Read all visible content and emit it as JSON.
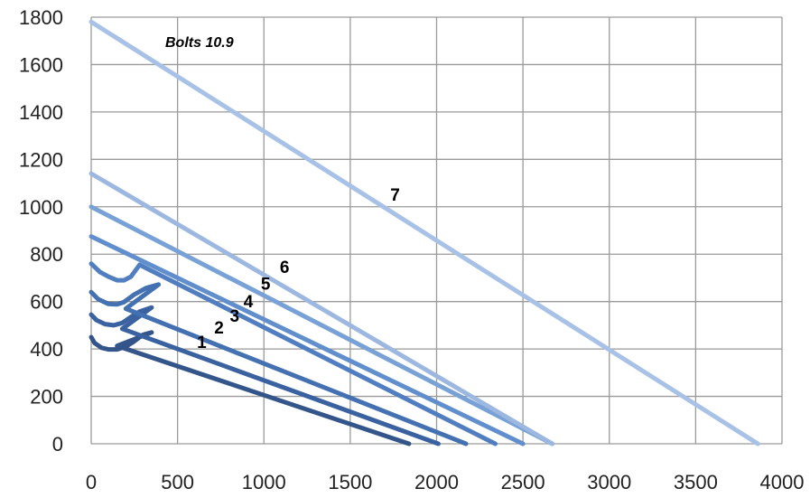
{
  "chart_data": {
    "type": "line",
    "title": "Bolts 10.9",
    "xlabel": "",
    "ylabel": "",
    "xlim": [
      0,
      4000
    ],
    "ylim": [
      0,
      1800
    ],
    "x_ticks": [
      0,
      500,
      1000,
      1500,
      2000,
      2500,
      3000,
      3500,
      4000
    ],
    "y_ticks": [
      0,
      200,
      400,
      600,
      800,
      1000,
      1200,
      1400,
      1600,
      1800
    ],
    "grid": true,
    "series": [
      {
        "name": "1",
        "color": "#34558a",
        "points": [
          [
            0,
            450
          ],
          [
            20,
            425
          ],
          [
            60,
            405
          ],
          [
            100,
            398
          ],
          [
            150,
            398
          ],
          [
            200,
            410
          ],
          [
            240,
            428
          ],
          [
            270,
            444
          ],
          [
            300,
            460
          ],
          [
            350,
            470
          ],
          [
            150,
            413
          ],
          [
            1840,
            0
          ]
        ]
      },
      {
        "name": "2",
        "color": "#3a62a0",
        "points": [
          [
            0,
            545
          ],
          [
            30,
            522
          ],
          [
            80,
            505
          ],
          [
            130,
            500
          ],
          [
            180,
            510
          ],
          [
            230,
            535
          ],
          [
            280,
            558
          ],
          [
            350,
            575
          ],
          [
            180,
            485
          ],
          [
            2010,
            0
          ]
        ]
      },
      {
        "name": "3",
        "color": "#4471b2",
        "points": [
          [
            0,
            640
          ],
          [
            40,
            610
          ],
          [
            100,
            590
          ],
          [
            150,
            588
          ],
          [
            190,
            598
          ],
          [
            250,
            630
          ],
          [
            320,
            658
          ],
          [
            390,
            672
          ],
          [
            200,
            570
          ],
          [
            2170,
            0
          ]
        ]
      },
      {
        "name": "4",
        "color": "#507ec0",
        "points": [
          [
            0,
            760
          ],
          [
            50,
            725
          ],
          [
            100,
            705
          ],
          [
            150,
            690
          ],
          [
            190,
            690
          ],
          [
            230,
            705
          ],
          [
            260,
            735
          ],
          [
            280,
            755
          ],
          [
            2340,
            0
          ]
        ]
      },
      {
        "name": "5",
        "color": "#618ecc",
        "points": [
          [
            0,
            875
          ],
          [
            2500,
            0
          ]
        ]
      },
      {
        "name": "6",
        "color": "#78a1d6",
        "points": [
          [
            0,
            1000
          ],
          [
            2670,
            0
          ]
        ]
      },
      {
        "name": "7",
        "color": "#a8c1e6",
        "points": [
          [
            0,
            1780
          ],
          [
            3860,
            0
          ]
        ]
      },
      {
        "name": "",
        "color": "#9cb8e0",
        "points": [
          [
            0,
            1140
          ],
          [
            2670,
            0
          ]
        ]
      }
    ],
    "annotations": [
      {
        "text": "1",
        "x": 640,
        "y": 405
      },
      {
        "text": "2",
        "x": 740,
        "y": 465
      },
      {
        "text": "3",
        "x": 830,
        "y": 515
      },
      {
        "text": "4",
        "x": 910,
        "y": 575
      },
      {
        "text": "5",
        "x": 1010,
        "y": 650
      },
      {
        "text": "6",
        "x": 1120,
        "y": 720
      },
      {
        "text": "7",
        "x": 1760,
        "y": 1025
      }
    ]
  }
}
